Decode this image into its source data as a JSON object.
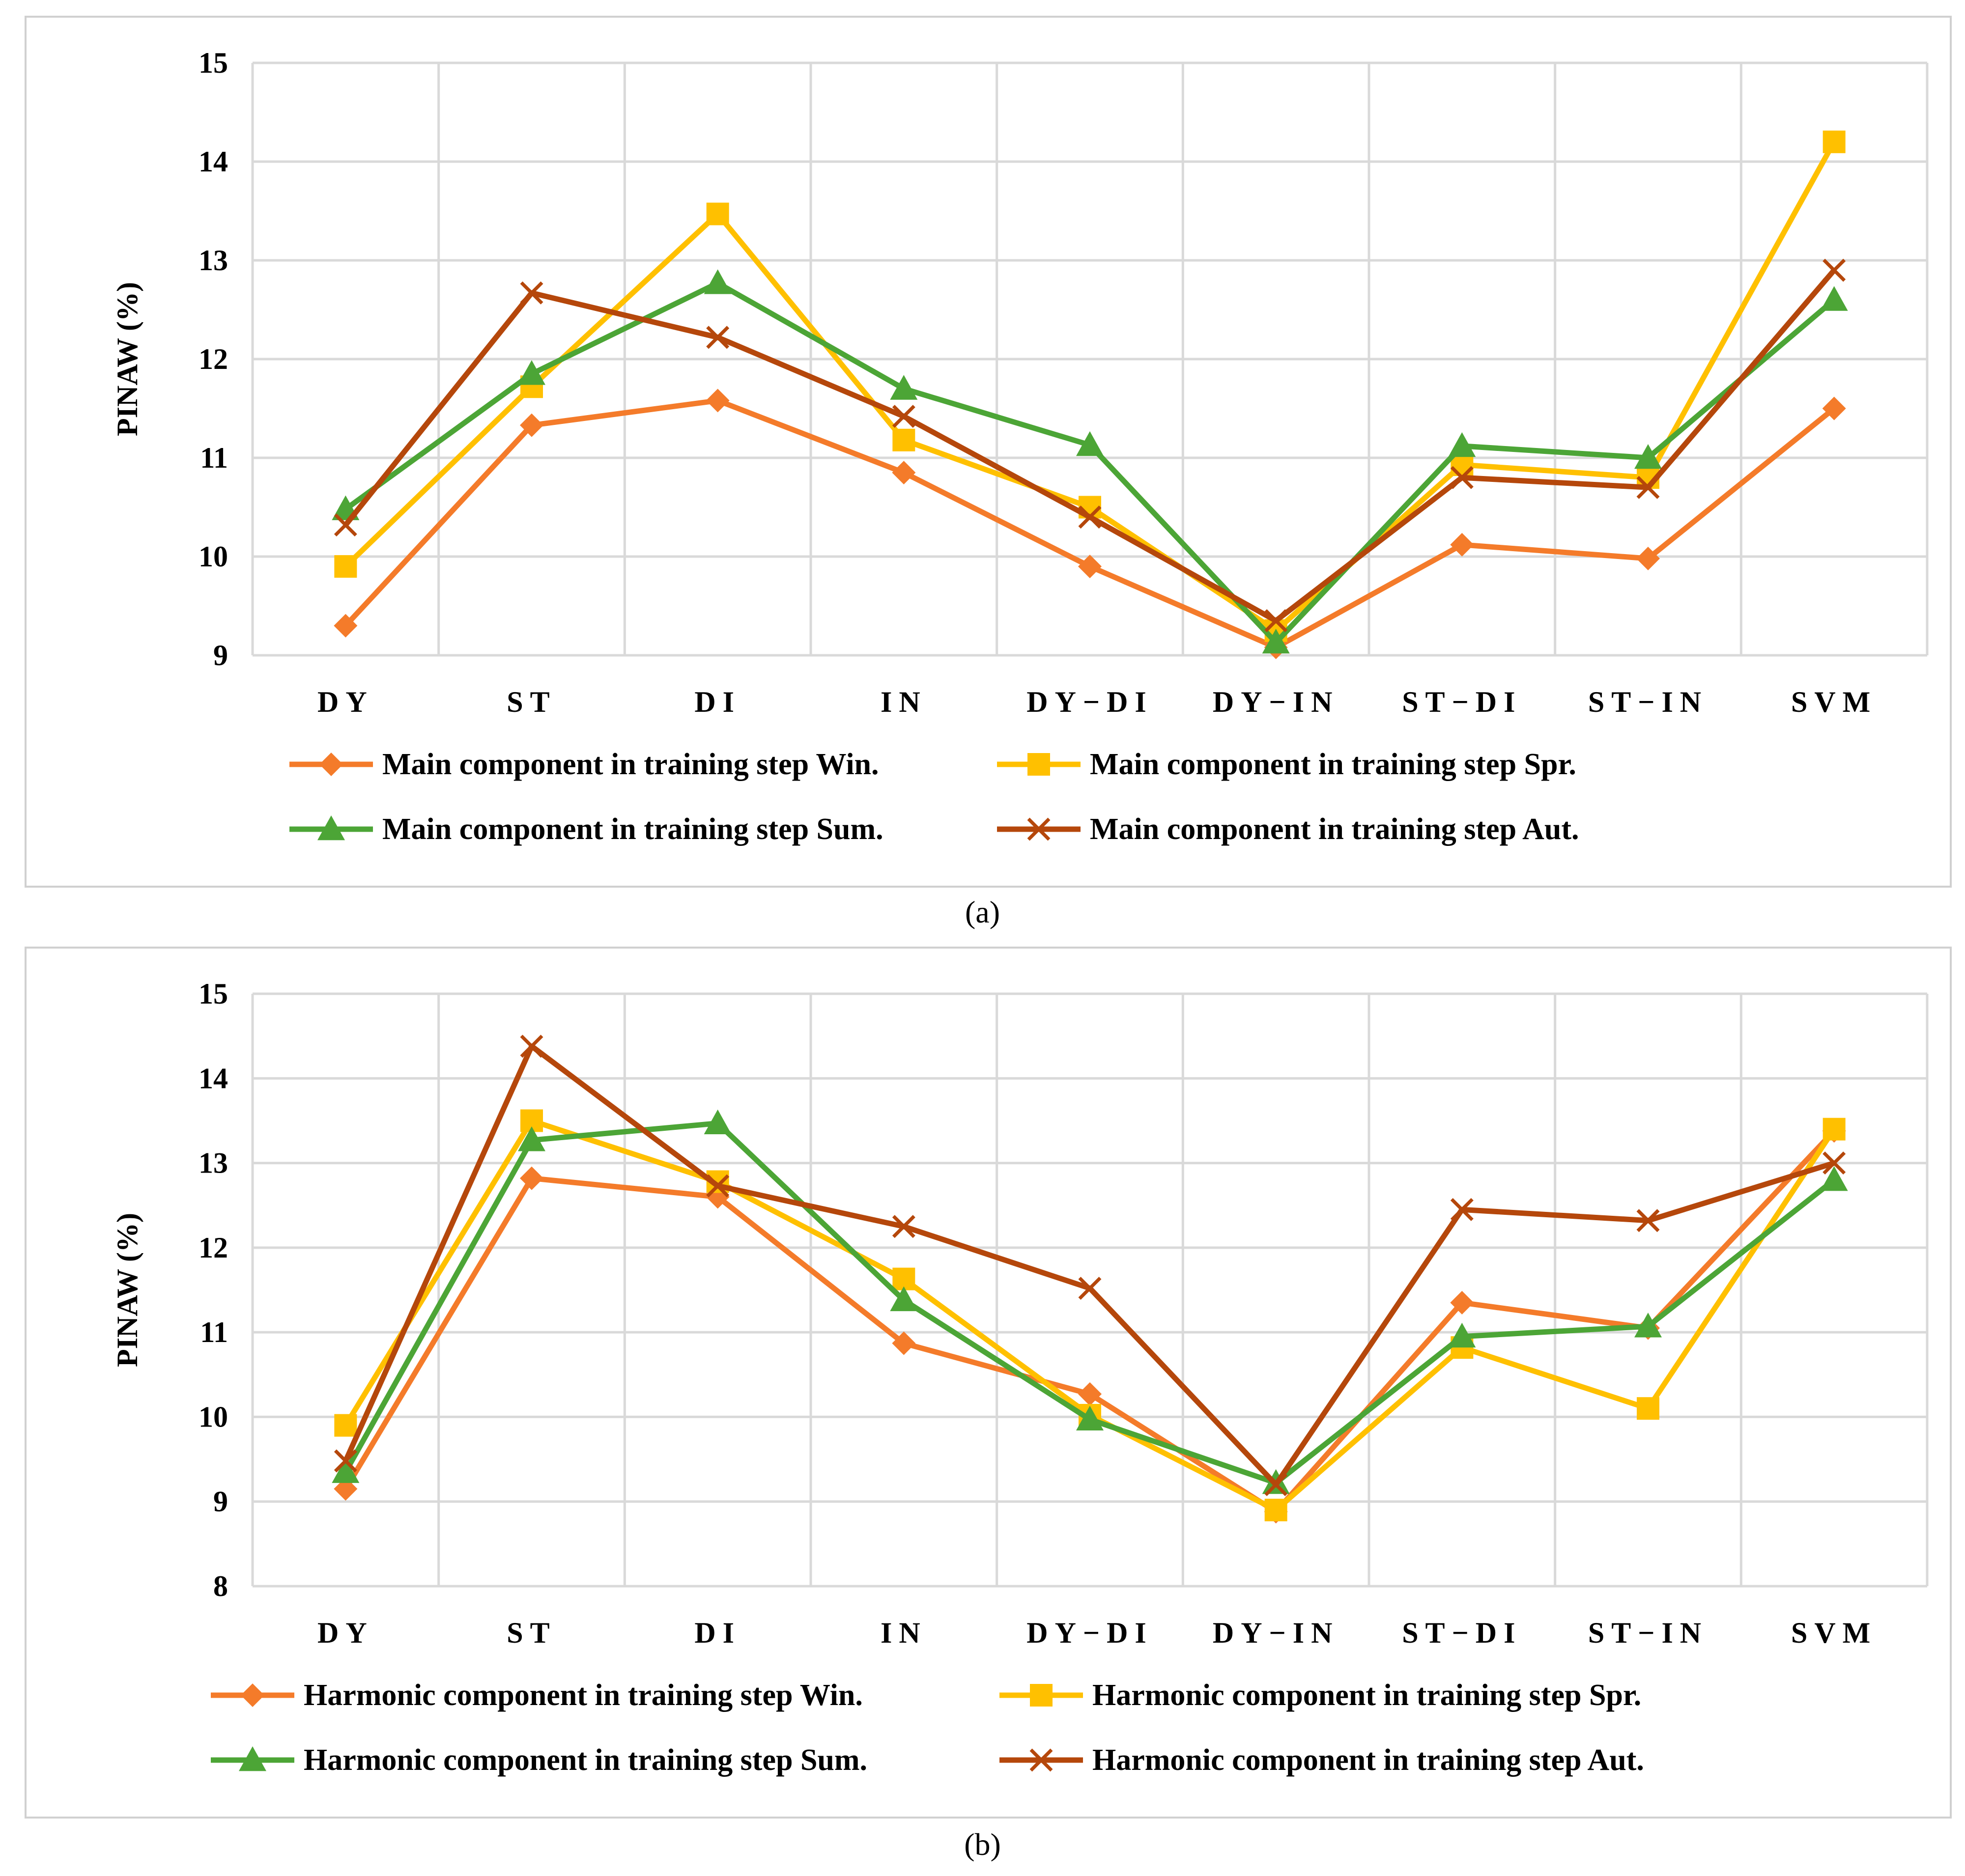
{
  "chart_data": [
    {
      "type": "line",
      "panel_label": "(a)",
      "ylabel": "PINAW  (%)",
      "ylim": [
        9,
        15
      ],
      "yticks": [
        9,
        10,
        11,
        12,
        13,
        14,
        15
      ],
      "categories": [
        "DY",
        "ST",
        "DI",
        "IN",
        "DY−DI",
        "DY−IN",
        "ST−DI",
        "ST−IN",
        "SVM"
      ],
      "grid": true,
      "legend_position": "bottom",
      "series": [
        {
          "name": "Main component in training step Win.",
          "color": "#F47B2A",
          "marker": "diamond",
          "values": [
            9.3,
            11.33,
            11.58,
            10.85,
            9.9,
            9.08,
            10.12,
            9.98,
            11.5
          ]
        },
        {
          "name": "Main component in training step Spr.",
          "color": "#FFC000",
          "marker": "square",
          "values": [
            9.9,
            11.72,
            13.47,
            11.18,
            10.5,
            9.25,
            10.93,
            10.8,
            14.2
          ]
        },
        {
          "name": "Main component in training step Sum.",
          "color": "#4CA536",
          "marker": "triangle",
          "values": [
            10.48,
            11.85,
            12.77,
            11.7,
            11.13,
            9.13,
            11.12,
            11.0,
            12.6
          ]
        },
        {
          "name": "Main component in training step Aut.",
          "color": "#B5470B",
          "marker": "x",
          "values": [
            10.32,
            12.67,
            12.22,
            11.42,
            10.4,
            9.35,
            10.8,
            10.7,
            12.9
          ]
        }
      ]
    },
    {
      "type": "line",
      "panel_label": "(b)",
      "ylabel": "PINAW  (%)",
      "ylim": [
        8,
        15
      ],
      "yticks": [
        8,
        9,
        10,
        11,
        12,
        13,
        14,
        15
      ],
      "categories": [
        "DY",
        "ST",
        "DI",
        "IN",
        "DY−DI",
        "DY−IN",
        "ST−DI",
        "ST−IN",
        "SVM"
      ],
      "grid": true,
      "legend_position": "bottom",
      "series": [
        {
          "name": "Harmonic component in training step Win.",
          "color": "#F47B2A",
          "marker": "diamond",
          "values": [
            9.15,
            12.82,
            12.6,
            10.87,
            10.27,
            8.88,
            11.35,
            11.05,
            13.38
          ]
        },
        {
          "name": "Harmonic component in training step Spr.",
          "color": "#FFC000",
          "marker": "square",
          "values": [
            9.9,
            13.5,
            12.78,
            11.63,
            10.02,
            8.9,
            10.82,
            10.1,
            13.4
          ]
        },
        {
          "name": "Harmonic component in training step Sum.",
          "color": "#4CA536",
          "marker": "triangle",
          "values": [
            9.35,
            13.27,
            13.47,
            11.38,
            9.97,
            9.22,
            10.95,
            11.07,
            12.8
          ]
        },
        {
          "name": "Harmonic component in training step Aut.",
          "color": "#B5470B",
          "marker": "x",
          "values": [
            9.48,
            14.38,
            12.73,
            12.25,
            11.52,
            9.2,
            12.45,
            12.32,
            13.0
          ]
        }
      ]
    }
  ]
}
